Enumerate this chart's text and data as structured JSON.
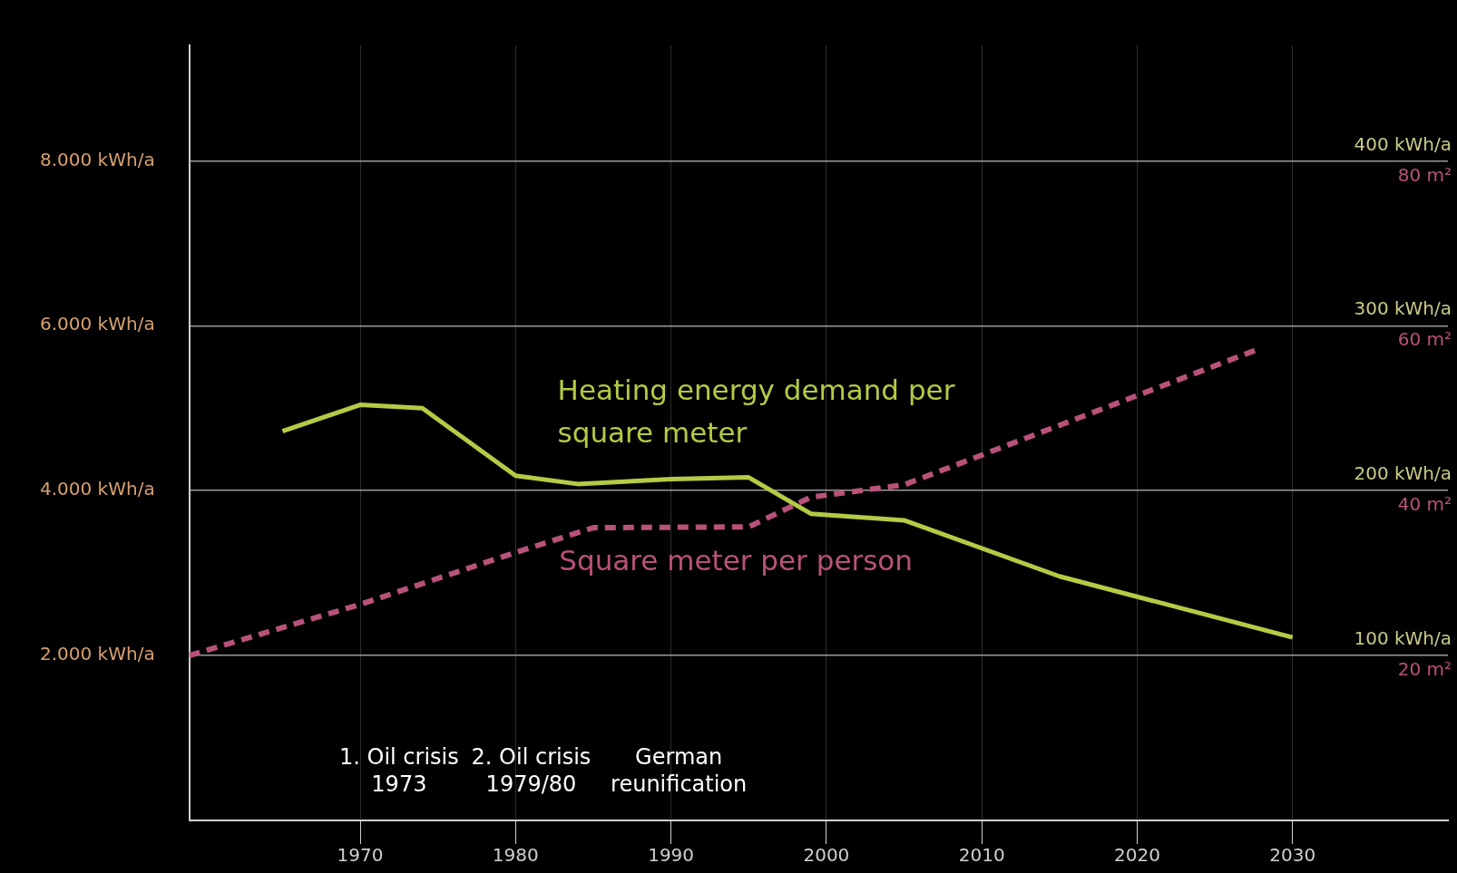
{
  "chart_data": {
    "type": "line",
    "xlim": [
      1959,
      2040
    ],
    "xticks": [
      1970,
      1980,
      1990,
      2000,
      2010,
      2020,
      2030
    ],
    "ylim": [
      0,
      9400
    ],
    "yticks": [
      {
        "value": 2000,
        "label": "2.000 kWh/a"
      },
      {
        "value": 4000,
        "label": "4.000 kWh/a"
      },
      {
        "value": 6000,
        "label": "6.000 kWh/a"
      },
      {
        "value": 8000,
        "label": "8.000 kWh/a"
      }
    ],
    "y2lim": [
      0,
      470
    ],
    "y2ticks": [
      {
        "value": 100,
        "label": "100 kWh/a"
      },
      {
        "value": 200,
        "label": "200 kWh/a"
      },
      {
        "value": 300,
        "label": "300 kWh/a"
      },
      {
        "value": 400,
        "label": "400 kWh/a"
      }
    ],
    "y3lim": [
      0,
      94
    ],
    "y3ticks": [
      {
        "value": 20,
        "label": "20 m²"
      },
      {
        "value": 40,
        "label": "40 m²"
      },
      {
        "value": 60,
        "label": "60 m²"
      },
      {
        "value": 80,
        "label": "80 m²"
      }
    ],
    "grid": true,
    "legend": false,
    "series": [
      {
        "name": "Heating energy demand per square meter",
        "color": "#b3cb45",
        "axis": "y2",
        "line_style": "solid",
        "x": [
          1965,
          1970,
          1974,
          1980,
          1984,
          1990,
          1995,
          1999,
          2005,
          2015,
          2030
        ],
        "values": [
          236,
          252,
          250,
          209,
          204,
          207,
          208,
          186,
          182,
          148,
          111
        ]
      },
      {
        "name": "Square meter per person",
        "color": "#b8527a",
        "axis": "y3",
        "line_style": "dashed",
        "x": [
          1959,
          1970,
          1980,
          1985,
          1995,
          1999,
          2005,
          2028
        ],
        "values": [
          20,
          26.2,
          32.5,
          35.5,
          35.6,
          39.2,
          40.7,
          57.3
        ]
      }
    ],
    "annotations": [
      "1. Oil crisis\n1973",
      "2. Oil crisis\n1979/80",
      "German\nreunification"
    ]
  }
}
